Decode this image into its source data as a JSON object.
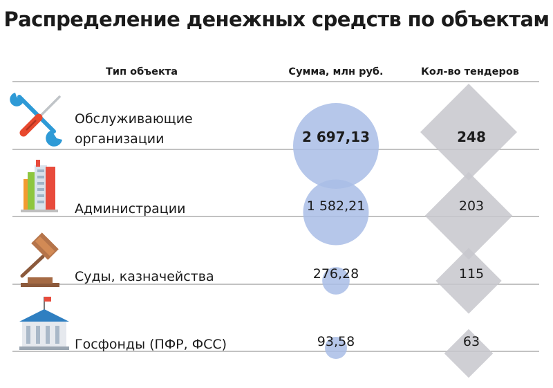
{
  "title": "Распределение денежных средств по объектам",
  "headers": {
    "type": "Тип объекта",
    "sum": "Сумма, млн руб.",
    "count": "Кол-во тендеров"
  },
  "colors": {
    "circle": "#a9bde6",
    "diamond": "#c7c7cc",
    "divider": "#9d9d9d"
  },
  "chart_data": {
    "type": "table",
    "columns": [
      "Тип объекта",
      "Сумма, млн руб.",
      "Кол-во тендеров"
    ],
    "rows": [
      {
        "category": "Обслуживающие организации",
        "label_lines": [
          "Обслуживающие",
          "организации"
        ],
        "sum": 2697.13,
        "sum_label": "2 697,13",
        "count": 248,
        "count_label": "248",
        "icon": "tools-icon",
        "highlight": true
      },
      {
        "category": "Администрации",
        "label_lines": [
          "Администрации"
        ],
        "sum": 1582.21,
        "sum_label": "1 582,21",
        "count": 203,
        "count_label": "203",
        "icon": "buildings-icon",
        "highlight": false
      },
      {
        "category": "Суды, казначейства",
        "label_lines": [
          "Суды, казначейства"
        ],
        "sum": 276.28,
        "sum_label": "276,28",
        "count": 115,
        "count_label": "115",
        "icon": "gavel-icon",
        "highlight": false
      },
      {
        "category": "Госфонды (ПФР, ФСС)",
        "label_lines": [
          "Госфонды (ПФР, ФСС)"
        ],
        "sum": 93.58,
        "sum_label": "93,58",
        "count": 63,
        "count_label": "63",
        "icon": "institution-icon",
        "highlight": false
      }
    ]
  }
}
